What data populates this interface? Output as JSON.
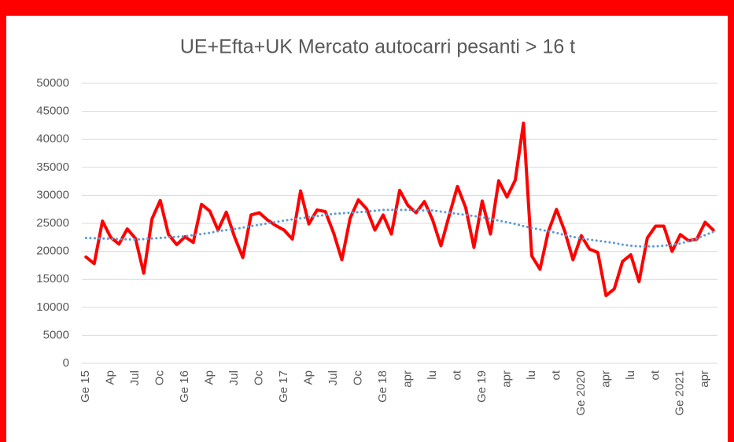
{
  "chart_data": {
    "type": "line",
    "title": "UE+Efta+UK Mercato autocarri pesanti > 16 t",
    "categories": [
      "Ge 15",
      null,
      null,
      "Ap",
      null,
      null,
      "Jul",
      null,
      null,
      "Oc",
      null,
      null,
      "Ge 16",
      null,
      null,
      "Ap",
      null,
      null,
      "Jul",
      null,
      null,
      "Oc",
      null,
      null,
      "Ge 17",
      null,
      null,
      "Ap",
      null,
      null,
      "Jul",
      null,
      null,
      "Oc",
      null,
      null,
      "Ge 18",
      null,
      null,
      "apr",
      null,
      null,
      "lu",
      null,
      null,
      "ot",
      null,
      null,
      "Ge 19",
      null,
      null,
      "apr",
      null,
      null,
      "lu",
      null,
      null,
      "ot",
      null,
      null,
      "Ge 2020",
      null,
      null,
      "apr",
      null,
      null,
      "lu",
      null,
      null,
      "ot",
      null,
      null,
      "Ge 2021",
      null,
      null,
      "apr",
      null
    ],
    "series": [
      {
        "color": "#ff0000",
        "style": "solid",
        "values": [
          19000,
          17800,
          25400,
          22500,
          21300,
          24000,
          22300,
          16100,
          25800,
          29100,
          23000,
          21200,
          22600,
          21600,
          28400,
          27200,
          23800,
          27000,
          22600,
          18900,
          26500,
          26900,
          25600,
          24600,
          23800,
          22200,
          30800,
          24900,
          27400,
          27100,
          23300,
          18500,
          25900,
          29200,
          27600,
          23800,
          26500,
          23100,
          30900,
          28200,
          26900,
          28900,
          25600,
          21000,
          26400,
          31600,
          27800,
          20700,
          29000,
          23100,
          32600,
          29700,
          32700,
          42900,
          19200,
          16800,
          23500,
          27500,
          23600,
          18500,
          22800,
          20400,
          19800,
          12100,
          13300,
          18200,
          19400,
          14600,
          22400,
          24500,
          24500,
          20000,
          23000,
          21900,
          22200,
          25200,
          23800
        ]
      },
      {
        "color": "#5b9bd5",
        "style": "dotted",
        "values": [
          22400,
          22350,
          22300,
          22250,
          22200,
          22150,
          22100,
          22200,
          22300,
          22400,
          22500,
          22600,
          22700,
          22900,
          23100,
          23300,
          23600,
          23800,
          24000,
          24250,
          24500,
          24750,
          25000,
          25250,
          25500,
          25700,
          25900,
          26100,
          26300,
          26500,
          26700,
          26800,
          26900,
          27000,
          27100,
          27250,
          27400,
          27400,
          27400,
          27400,
          27350,
          27300,
          27300,
          27100,
          26900,
          26700,
          26500,
          26300,
          26100,
          25800,
          25500,
          25200,
          24900,
          24500,
          24200,
          23900,
          23600,
          23300,
          22900,
          22600,
          22300,
          22100,
          21900,
          21700,
          21500,
          21200,
          21000,
          20900,
          20900,
          20900,
          21000,
          21200,
          21400,
          21800,
          22300,
          22900,
          23500
        ]
      }
    ],
    "ylim": [
      0,
      50000
    ],
    "yticks": [
      0,
      5000,
      10000,
      15000,
      20000,
      25000,
      30000,
      35000,
      40000,
      45000,
      50000
    ],
    "grid": true
  }
}
